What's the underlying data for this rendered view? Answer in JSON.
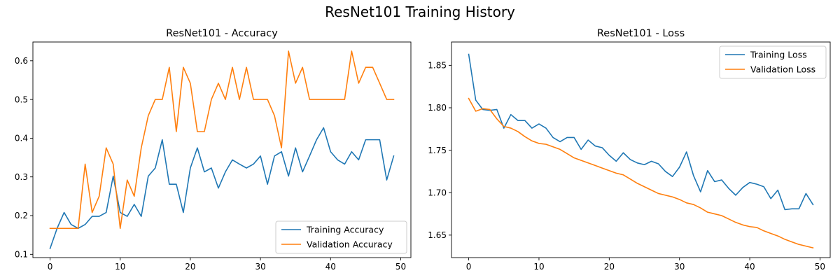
{
  "figure": {
    "title": "ResNet101 Training History"
  },
  "chart_data": [
    {
      "type": "line",
      "title": "ResNet101 - Accuracy",
      "xlabel": "",
      "ylabel": "",
      "xlim": [
        -2.45,
        51.45
      ],
      "ylim": [
        0.0915,
        0.6485
      ],
      "xticks": [
        0,
        10,
        20,
        30,
        40,
        50
      ],
      "yticks": [
        0.1,
        0.2,
        0.3,
        0.4,
        0.5,
        0.6
      ],
      "ytick_labels": [
        "0.1",
        "0.2",
        "0.3",
        "0.4",
        "0.5",
        "0.6"
      ],
      "grid": false,
      "legend_position": "lower-right",
      "series": [
        {
          "name": "Training Accuracy",
          "color": "#1f77b4",
          "values": [
            0.115,
            0.167,
            0.208,
            0.177,
            0.167,
            0.177,
            0.198,
            0.198,
            0.208,
            0.302,
            0.208,
            0.198,
            0.229,
            0.198,
            0.302,
            0.323,
            0.396,
            0.281,
            0.281,
            0.208,
            0.323,
            0.375,
            0.313,
            0.323,
            0.271,
            0.313,
            0.344,
            0.333,
            0.323,
            0.333,
            0.354,
            0.281,
            0.354,
            0.365,
            0.302,
            0.375,
            0.313,
            0.354,
            0.396,
            0.427,
            0.365,
            0.344,
            0.333,
            0.365,
            0.344,
            0.396,
            0.396,
            0.396,
            0.292,
            0.354
          ]
        },
        {
          "name": "Validation Accuracy",
          "color": "#ff7f0e",
          "values": [
            0.167,
            0.167,
            0.167,
            0.167,
            0.167,
            0.333,
            0.208,
            0.25,
            0.375,
            0.333,
            0.167,
            0.292,
            0.25,
            0.375,
            0.458,
            0.5,
            0.5,
            0.583,
            0.417,
            0.583,
            0.542,
            0.417,
            0.417,
            0.5,
            0.542,
            0.5,
            0.583,
            0.5,
            0.583,
            0.5,
            0.5,
            0.5,
            0.458,
            0.375,
            0.625,
            0.542,
            0.583,
            0.5,
            0.5,
            0.5,
            0.5,
            0.5,
            0.5,
            0.625,
            0.542,
            0.583,
            0.583,
            0.542,
            0.5,
            0.5
          ]
        }
      ]
    },
    {
      "type": "line",
      "title": "ResNet101 - Loss",
      "xlabel": "",
      "ylabel": "",
      "xlim": [
        -2.45,
        51.45
      ],
      "ylim": [
        1.6235,
        1.8775
      ],
      "xticks": [
        0,
        10,
        20,
        30,
        40,
        50
      ],
      "yticks": [
        1.65,
        1.7,
        1.75,
        1.8,
        1.85
      ],
      "ytick_labels": [
        "1.65",
        "1.70",
        "1.75",
        "1.80",
        "1.85"
      ],
      "grid": false,
      "legend_position": "upper-right",
      "series": [
        {
          "name": "Training Loss",
          "color": "#1f77b4",
          "values": [
            1.863,
            1.809,
            1.798,
            1.797,
            1.798,
            1.776,
            1.792,
            1.785,
            1.785,
            1.776,
            1.781,
            1.776,
            1.765,
            1.76,
            1.765,
            1.765,
            1.751,
            1.762,
            1.755,
            1.753,
            1.744,
            1.737,
            1.747,
            1.739,
            1.735,
            1.733,
            1.737,
            1.734,
            1.725,
            1.719,
            1.73,
            1.748,
            1.72,
            1.701,
            1.726,
            1.713,
            1.715,
            1.705,
            1.697,
            1.706,
            1.712,
            1.71,
            1.707,
            1.693,
            1.703,
            1.68,
            1.681,
            1.681,
            1.699,
            1.686
          ]
        },
        {
          "name": "Validation Loss",
          "color": "#ff7f0e",
          "values": [
            1.811,
            1.796,
            1.799,
            1.798,
            1.787,
            1.778,
            1.776,
            1.772,
            1.766,
            1.761,
            1.758,
            1.757,
            1.754,
            1.751,
            1.746,
            1.741,
            1.738,
            1.735,
            1.732,
            1.729,
            1.726,
            1.723,
            1.721,
            1.716,
            1.711,
            1.707,
            1.703,
            1.699,
            1.697,
            1.695,
            1.692,
            1.688,
            1.686,
            1.682,
            1.677,
            1.675,
            1.673,
            1.669,
            1.665,
            1.662,
            1.66,
            1.659,
            1.655,
            1.652,
            1.649,
            1.645,
            1.642,
            1.639,
            1.637,
            1.635
          ]
        }
      ]
    }
  ]
}
